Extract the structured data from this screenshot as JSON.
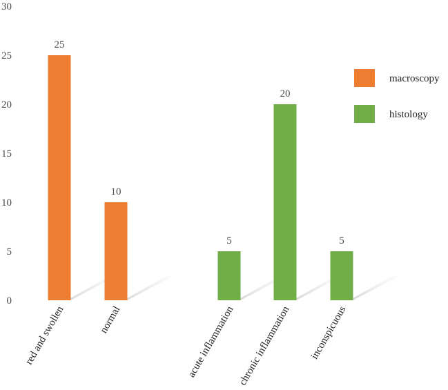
{
  "chart_data": {
    "type": "bar",
    "categories": [
      "red and swollen",
      "normal",
      "acute inflammation",
      "chronic inflammation",
      "inconspicuous"
    ],
    "series": [
      {
        "name": "macroscopy",
        "color": "#ED7D31",
        "values": [
          25,
          10,
          null,
          null,
          null
        ]
      },
      {
        "name": "histology",
        "color": "#70AD47",
        "values": [
          null,
          null,
          5,
          20,
          5
        ]
      }
    ],
    "data_labels": [
      "25",
      "10",
      "5",
      "20",
      "5"
    ],
    "ylim": [
      0,
      30
    ],
    "yticks": [
      0,
      5,
      10,
      15,
      20,
      25,
      30
    ],
    "ytick_labels": [
      "0",
      "5",
      "10",
      "15",
      "20",
      "25",
      "30"
    ],
    "title": "",
    "xlabel": "",
    "ylabel": "",
    "grid": false,
    "legend_position": "right"
  }
}
